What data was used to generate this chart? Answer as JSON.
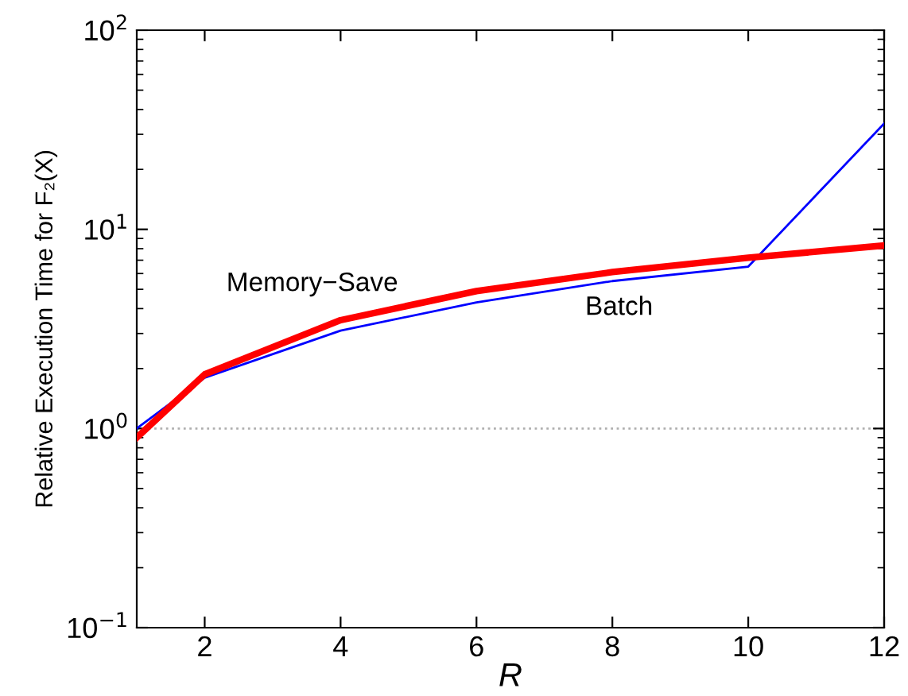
{
  "chart_data": {
    "type": "line",
    "xlabel": "R",
    "ylabel": "Relative Execution Time for F₂(X)",
    "x": [
      1,
      2,
      4,
      6,
      8,
      10,
      12
    ],
    "series": [
      {
        "name": "Memory−Save",
        "color": "#ff0000",
        "values": [
          0.9,
          1.87,
          3.5,
          4.9,
          6.1,
          7.2,
          8.3
        ]
      },
      {
        "name": "Batch",
        "color": "#0000ff",
        "values": [
          1.0,
          1.8,
          3.1,
          4.3,
          5.5,
          6.5,
          34
        ]
      }
    ],
    "log": "y",
    "xlim": [
      1,
      12
    ],
    "ylim": [
      0.1,
      100
    ],
    "xticks": [
      2,
      4,
      6,
      8,
      10,
      12
    ],
    "yticks": [
      {
        "value": 0.1,
        "label": "10$^{−1}$"
      },
      {
        "value": 1,
        "label": "10$^{0}$"
      },
      {
        "value": 10,
        "label": "10$^{1}$"
      },
      {
        "value": 100,
        "label": "10$^{2}$"
      }
    ],
    "ref_lines": [
      {
        "axis": "y",
        "value": 1,
        "color": "#b0b0b0",
        "line_style": "dotted"
      }
    ],
    "grid": false,
    "legend": false,
    "marker": "none",
    "line_style": "solid"
  }
}
